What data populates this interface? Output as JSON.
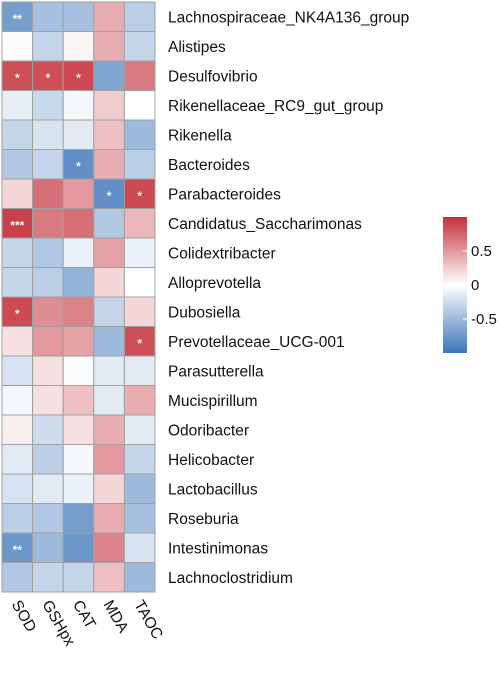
{
  "chart_data": {
    "type": "heatmap",
    "columns": [
      "SOD",
      "GSHpx",
      "CAT",
      "MDA",
      "TAOC"
    ],
    "rows": [
      {
        "name": "Lachnospiraceae_NK4A136_group",
        "values": [
          -0.7,
          -0.45,
          -0.45,
          0.4,
          -0.35
        ],
        "stars": [
          "**",
          "",
          "",
          "",
          ""
        ]
      },
      {
        "name": "Alistipes",
        "values": [
          0.02,
          -0.3,
          0.05,
          0.4,
          -0.3
        ],
        "stars": [
          "",
          "",
          "",
          "",
          ""
        ]
      },
      {
        "name": "Desulfovibrio",
        "values": [
          0.85,
          0.85,
          0.88,
          -0.65,
          0.65
        ],
        "stars": [
          "*",
          "*",
          "*",
          "",
          ""
        ]
      },
      {
        "name": "Rikenellaceae_RC9_gut_group",
        "values": [
          -0.12,
          -0.28,
          -0.05,
          0.25,
          0.0
        ],
        "stars": [
          "",
          "",
          "",
          "",
          ""
        ]
      },
      {
        "name": "Rikenella",
        "values": [
          -0.3,
          -0.2,
          -0.15,
          0.3,
          -0.5
        ],
        "stars": [
          "",
          "",
          "",
          "",
          ""
        ]
      },
      {
        "name": "Bacteroides",
        "values": [
          -0.4,
          -0.3,
          -0.8,
          0.4,
          -0.35
        ],
        "stars": [
          "",
          "",
          "*",
          "",
          ""
        ]
      },
      {
        "name": "Parabacteroides",
        "values": [
          0.2,
          0.7,
          0.5,
          -0.8,
          0.88
        ],
        "stars": [
          "",
          "",
          "",
          "*",
          "*"
        ]
      },
      {
        "name": "Candidatus_Saccharimonas",
        "values": [
          0.92,
          0.65,
          0.7,
          -0.4,
          0.35
        ],
        "stars": [
          "***",
          "",
          "",
          "",
          ""
        ]
      },
      {
        "name": "Colidextribacter",
        "values": [
          -0.3,
          -0.4,
          -0.1,
          0.45,
          -0.1
        ],
        "stars": [
          "",
          "",
          "",
          "",
          ""
        ]
      },
      {
        "name": "Alloprevotella",
        "values": [
          -0.3,
          -0.35,
          -0.55,
          0.2,
          0.0
        ],
        "stars": [
          "",
          "",
          "",
          "",
          ""
        ]
      },
      {
        "name": "Dubosiella",
        "values": [
          0.88,
          0.55,
          0.6,
          -0.3,
          0.2
        ],
        "stars": [
          "*",
          "",
          "",
          "",
          ""
        ]
      },
      {
        "name": "Prevotellaceae_UCG-001",
        "values": [
          0.15,
          0.5,
          0.45,
          -0.5,
          0.85
        ],
        "stars": [
          "",
          "",
          "",
          "",
          "*"
        ]
      },
      {
        "name": "Parasutterella",
        "values": [
          -0.2,
          0.15,
          -0.02,
          -0.15,
          -0.15
        ],
        "stars": [
          "",
          "",
          "",
          "",
          ""
        ]
      },
      {
        "name": "Mucispirillum",
        "values": [
          -0.05,
          0.15,
          0.3,
          -0.15,
          0.4
        ],
        "stars": [
          "",
          "",
          "",
          "",
          ""
        ]
      },
      {
        "name": "Odoribacter",
        "values": [
          0.08,
          -0.25,
          0.15,
          0.4,
          -0.15
        ],
        "stars": [
          "",
          "",
          "",
          "",
          ""
        ]
      },
      {
        "name": "Helicobacter",
        "values": [
          -0.15,
          -0.35,
          -0.05,
          0.5,
          -0.3
        ],
        "stars": [
          "",
          "",
          "",
          "",
          ""
        ]
      },
      {
        "name": "Lactobacillus",
        "values": [
          -0.2,
          -0.15,
          -0.1,
          0.2,
          -0.5
        ],
        "stars": [
          "",
          "",
          "",
          "",
          ""
        ]
      },
      {
        "name": "Roseburia",
        "values": [
          -0.35,
          -0.4,
          -0.7,
          0.4,
          -0.45
        ],
        "stars": [
          "",
          "",
          "",
          "",
          ""
        ]
      },
      {
        "name": "Intestinimonas",
        "values": [
          -0.75,
          -0.5,
          -0.75,
          0.6,
          -0.2
        ],
        "stars": [
          "**",
          "",
          "",
          "",
          ""
        ]
      },
      {
        "name": "Lachnoclostridium",
        "values": [
          -0.4,
          -0.3,
          -0.3,
          0.3,
          -0.5
        ],
        "stars": [
          "",
          "",
          "",
          "",
          ""
        ]
      }
    ],
    "colorbar": {
      "range": [
        -1,
        1
      ],
      "ticks": [
        {
          "value": 0.5,
          "label": "0.5"
        },
        {
          "value": 0,
          "label": "0"
        },
        {
          "value": -0.5,
          "label": "-0.5"
        }
      ]
    },
    "colors": {
      "negative": "#3b74b8",
      "middle": "#ffffff",
      "positive": "#c4313b"
    }
  }
}
